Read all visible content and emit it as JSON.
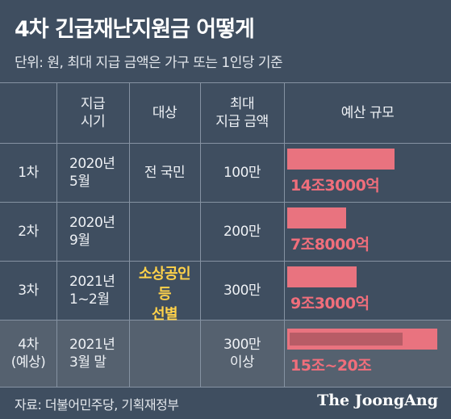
{
  "title": "4차 긴급재난지원금 어떻게",
  "subtitle": "단위: 원, 최대 지급 금액은 가구 또는 1인당 기준",
  "table": {
    "headers": [
      "",
      "지급\n시기",
      "대상",
      "최대\n지급 금액",
      "예산 규모"
    ],
    "rows": [
      {
        "round": "1차",
        "period": "2020년\n5월",
        "target": "전 국민",
        "max_amount": "100만",
        "budget_label": "14조3000억"
      },
      {
        "round": "2차",
        "period": "2020년\n9월",
        "target": "",
        "max_amount": "200만",
        "budget_label": "7조8000억"
      },
      {
        "round": "3차",
        "period": "2021년\n1~2월",
        "target": "",
        "max_amount": "300만",
        "budget_label": "9조3000억"
      },
      {
        "round": "4차\n(예상)",
        "period": "2021년\n3월 말",
        "target": "",
        "max_amount": "300만\n이상",
        "budget_label": "15조~20조"
      }
    ],
    "merged_target": "소상공인\n등\n선별"
  },
  "chart_data": {
    "type": "bar",
    "orientation": "horizontal",
    "categories": [
      "1차",
      "2차",
      "3차",
      "4차(예상)"
    ],
    "series": [
      {
        "values": [
          14.3,
          7.8,
          9.3,
          15
        ]
      },
      {
        "values": [
          null,
          null,
          null,
          20
        ]
      }
    ],
    "unit": "조 원",
    "value_labels": [
      "14조3000억",
      "7조8000억",
      "9조3000억",
      "15조~20조"
    ]
  },
  "colors": {
    "background": "#3f4e60",
    "bar": "#e9737f",
    "bar_label": "#f06e7b",
    "highlight": "#ffd24a"
  },
  "source": "자료: 더불어민주당, 기획재정부",
  "logo": "The JoongAng"
}
